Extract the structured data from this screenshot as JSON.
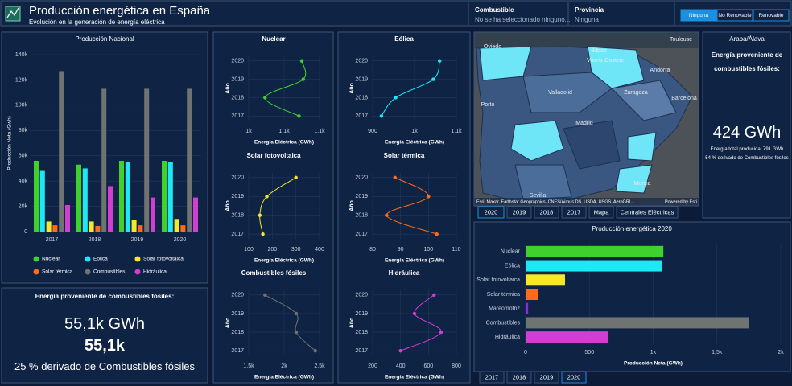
{
  "header": {
    "title": "Producción energética en España",
    "subtitle": "Evolución en la generación de energía eléctrica"
  },
  "filters": {
    "fuel_label": "Combustible",
    "fuel_value": "No se ha seleccionado ninguno...",
    "province_label": "Provincia",
    "province_value": "Ninguna",
    "buttons": [
      "Ninguna",
      "No Renovable",
      "Renovable"
    ]
  },
  "chart_data": [
    {
      "type": "bar",
      "title": "Producción Nacional",
      "y_label": "Producción Neta (Gwh)",
      "categories": [
        "2017",
        "2018",
        "2019",
        "2020"
      ],
      "series": [
        {
          "name": "Nuclear",
          "color": "#3fd22d",
          "values": [
            56000,
            53000,
            56000,
            56000
          ]
        },
        {
          "name": "Eólica",
          "color": "#1de9f6",
          "values": [
            48000,
            50000,
            55000,
            55000
          ]
        },
        {
          "name": "Solar fotovoltaica",
          "color": "#f5e82b",
          "values": [
            8000,
            8000,
            9000,
            10000
          ]
        },
        {
          "name": "Solar térmica",
          "color": "#ff6b1a",
          "values": [
            5000,
            4500,
            5000,
            5000
          ]
        },
        {
          "name": "Combustibles",
          "color": "#6f7372",
          "values": [
            127000,
            113000,
            113000,
            113000
          ]
        },
        {
          "name": "Hidráulica",
          "color": "#d23dd2",
          "values": [
            21000,
            36000,
            27000,
            27000
          ]
        }
      ],
      "ylim": [
        0,
        140000
      ],
      "yticks": [
        0,
        {
          "value": 20000,
          "label": "20k"
        },
        {
          "value": 40000,
          "label": "40k"
        },
        {
          "value": 60000,
          "label": "60k"
        },
        {
          "value": 80000,
          "label": "80k"
        },
        {
          "value": 100000,
          "label": "100k"
        },
        {
          "value": 120000,
          "label": "120k"
        },
        {
          "value": 140000,
          "label": "140k"
        }
      ],
      "grid": true
    },
    {
      "type": "line",
      "title": "Nuclear",
      "x_label": "Energía Eléctrica (GWh)",
      "y_label": "Año",
      "color": "#3fd22d",
      "y": [
        2017,
        2018,
        2019,
        2020
      ],
      "values": [
        1071,
        1023,
        1077,
        1075
      ],
      "xlim": [
        1000,
        1100
      ],
      "xticks": [
        {
          "value": 1000,
          "label": "1k"
        },
        {
          "value": 1050,
          "label": "1,1k"
        },
        {
          "value": 1100,
          "label": "1,1k"
        }
      ],
      "ylim": [
        2016.75,
        2020.25
      ],
      "yticks": [
        2017,
        2018,
        2019,
        2020
      ],
      "grid": true
    },
    {
      "type": "line",
      "title": "Eólica",
      "x_label": "Energía Eléctrica (GWh)",
      "y_label": "Año",
      "color": "#1de9f6",
      "y": [
        2017,
        2018,
        2019,
        2020
      ],
      "values": [
        921,
        955,
        1045,
        1060
      ],
      "xlim": [
        900,
        1100
      ],
      "xticks": [
        900,
        {
          "value": 1000,
          "label": "1k"
        },
        {
          "value": 1100,
          "label": "1,1k"
        }
      ],
      "ylim": [
        2016.75,
        2020.25
      ],
      "yticks": [
        2017,
        2018,
        2019,
        2020
      ],
      "grid": true
    },
    {
      "type": "line",
      "title": "Solar fotovoltaica",
      "x_label": "Energía Eléctrica (GWh)",
      "y_label": "Año",
      "color": "#f5e82b",
      "y": [
        2017,
        2018,
        2019,
        2020
      ],
      "values": [
        160,
        147,
        177,
        300
      ],
      "xlim": [
        100,
        400
      ],
      "xticks": [
        100,
        200,
        300,
        400
      ],
      "ylim": [
        2016.75,
        2020.25
      ],
      "yticks": [
        2017,
        2018,
        2019,
        2020
      ],
      "grid": true
    },
    {
      "type": "line",
      "title": "Solar térmica",
      "x_label": "Energía Eléctrica (GWh)",
      "y_label": "Año",
      "color": "#ff6b1a",
      "y": [
        2017,
        2018,
        2019,
        2020
      ],
      "values": [
        103,
        85,
        100,
        88
      ],
      "xlim": [
        80,
        110
      ],
      "xticks": [
        80,
        90,
        100,
        110
      ],
      "ylim": [
        2016.75,
        2020.25
      ],
      "yticks": [
        2017,
        2018,
        2019,
        2020
      ],
      "grid": true
    },
    {
      "type": "line",
      "title": "Combustibles fósiles",
      "x_label": "Energía Eléctrica (GWh)",
      "y_label": "Año",
      "color": "#6f7372",
      "y": [
        2017,
        2018,
        2019,
        2020
      ],
      "values": [
        2440,
        2170,
        2170,
        1730
      ],
      "xlim": [
        1500,
        2500
      ],
      "xticks": [
        {
          "value": 1500,
          "label": "1,5k"
        },
        {
          "value": 2000,
          "label": "2k"
        },
        {
          "value": 2500,
          "label": "2,5k"
        }
      ],
      "ylim": [
        2016.75,
        2020.25
      ],
      "yticks": [
        2017,
        2018,
        2019,
        2020
      ],
      "grid": true
    },
    {
      "type": "line",
      "title": "Hidráulica",
      "x_label": "Energía Eléctrica (GWh)",
      "y_label": "Año",
      "color": "#d23dd2",
      "y": [
        2017,
        2018,
        2019,
        2020
      ],
      "values": [
        400,
        690,
        500,
        640
      ],
      "xlim": [
        200,
        800
      ],
      "xticks": [
        200,
        400,
        600,
        800
      ],
      "ylim": [
        2016.75,
        2020.25
      ],
      "yticks": [
        2017,
        2018,
        2019,
        2020
      ],
      "grid": true
    },
    {
      "type": "barh",
      "title": "Producción energética 2020",
      "x_label": "Producción Neta (GWh)",
      "categories": [
        "Nuclear",
        "Eólica",
        "Solar fotovoltaica",
        "Solar térmica",
        "Mareomotriz",
        "Combustibles",
        "Hidráulica"
      ],
      "values": [
        1080,
        1066,
        309,
        95,
        20,
        1748,
        650
      ],
      "colors": [
        "#3fd22d",
        "#1de9f6",
        "#f5e82b",
        "#ff6b1a",
        "#8a2be2",
        "#6f7372",
        "#d23dd2"
      ],
      "xlim": [
        0,
        2000
      ],
      "xticks": [
        0,
        500,
        {
          "value": 1000,
          "label": "1k"
        },
        {
          "value": 1500,
          "label": "1,5k"
        },
        {
          "value": 2000,
          "label": "2k"
        }
      ],
      "grid": true
    }
  ],
  "national_kpi": {
    "title": "Energía proveniente de combustibles fósiles:",
    "value": "55,1k GWh",
    "value_short": "55,1k",
    "share": "25 % derivado de Combustibles fósiles"
  },
  "map": {
    "labels": [
      "Oviedo",
      "Bilbao",
      "Vitoria-Gasteiz",
      "Andorra",
      "Valladolid",
      "Zaragoza",
      "Barcelona",
      "Porto",
      "Madrid",
      "Murcia",
      "Sevilla",
      "Toulouse"
    ],
    "attribution": "Esri, Maxar, Earthstar Geographics, CNES/Airbus DS, USDA, USGS, AeroGRI...",
    "powered_by": "Powered by Esri",
    "tabs": [
      "2020",
      "2019",
      "2018",
      "2017",
      "Mapa",
      "Centrales Eléctricas"
    ]
  },
  "province_panel": {
    "province": "Araba/Álava",
    "title": "Energía proveniente de combustibles fósiles:",
    "value": "424 GWh",
    "total": "Energía total producida: 791 GWh",
    "share": "54 % derivado de Combustibles fósiles"
  },
  "bottom_tabs": [
    "2017",
    "2018",
    "2019",
    "2020"
  ]
}
